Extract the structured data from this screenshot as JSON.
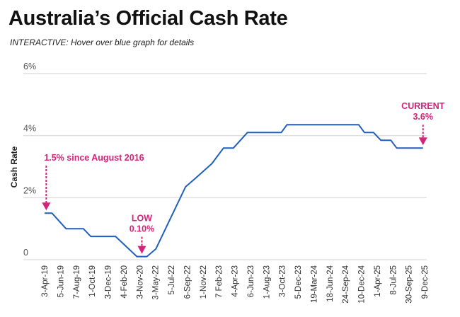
{
  "header": {
    "title": "Australia’s Official Cash Rate",
    "subtitle": "INTERACTIVE: Hover over blue graph for details"
  },
  "colors": {
    "line": "#1f5fbf",
    "annotation": "#d4237a",
    "grid": "#e0e0e0"
  },
  "chart_data": {
    "type": "line",
    "title": "Australia’s Official Cash Rate",
    "xlabel": "",
    "ylabel": "Cash Rate",
    "ylim": [
      0,
      6
    ],
    "yticks": [
      0,
      2,
      4,
      6
    ],
    "ytick_labels": [
      "0",
      "2%",
      "4%",
      "6%"
    ],
    "grid": true,
    "categories": [
      "3-Apr-19",
      "5-Jun-19",
      "7-Aug-19",
      "1-Oct-19",
      "3-Dec-19",
      "4-Feb-20",
      "3-Nov-20",
      "3-May-22",
      "5-Jul-22",
      "6-Sep-22",
      "1-Nov-22",
      "7 Feb-23",
      "4-Apr-23",
      "6-Jun-23",
      "1-Aug-23",
      "3-Oct-23",
      "5-Dec-23",
      "19-Mar-24",
      "18-Jun-24",
      "24-Sep-24",
      "10-Dec-24",
      "1-Apr-25",
      "8-Jul-25",
      "30-Sep-25",
      "9-Dec-25"
    ],
    "series": [
      {
        "name": "Cash Rate",
        "points": [
          [
            0,
            1.5
          ],
          [
            0.45,
            1.5
          ],
          [
            1.3,
            1.0
          ],
          [
            2.35,
            1.0
          ],
          [
            2.8,
            0.75
          ],
          [
            4.3,
            0.75
          ],
          [
            5.6,
            0.1
          ],
          [
            6.2,
            0.1
          ],
          [
            6.75,
            0.35
          ],
          [
            8.55,
            2.35
          ],
          [
            9.1,
            2.6
          ],
          [
            10.15,
            3.1
          ],
          [
            10.85,
            3.6
          ],
          [
            11.45,
            3.6
          ],
          [
            12.3,
            4.1
          ],
          [
            14.35,
            4.1
          ],
          [
            14.7,
            4.35
          ],
          [
            19.05,
            4.35
          ],
          [
            19.4,
            4.1
          ],
          [
            19.95,
            4.1
          ],
          [
            20.4,
            3.85
          ],
          [
            21.0,
            3.85
          ],
          [
            21.35,
            3.6
          ],
          [
            22.95,
            3.6
          ]
        ]
      }
    ],
    "annotations": [
      {
        "lines": [
          "1.5% since August 2016"
        ],
        "at_index": 0.1,
        "value": 1.5
      },
      {
        "lines": [
          "LOW",
          "0.10%"
        ],
        "at_index": 5.9,
        "value": 0.1
      },
      {
        "lines": [
          "CURRENT",
          "3.6%"
        ],
        "at_index": 22.95,
        "value": 3.6
      }
    ]
  }
}
